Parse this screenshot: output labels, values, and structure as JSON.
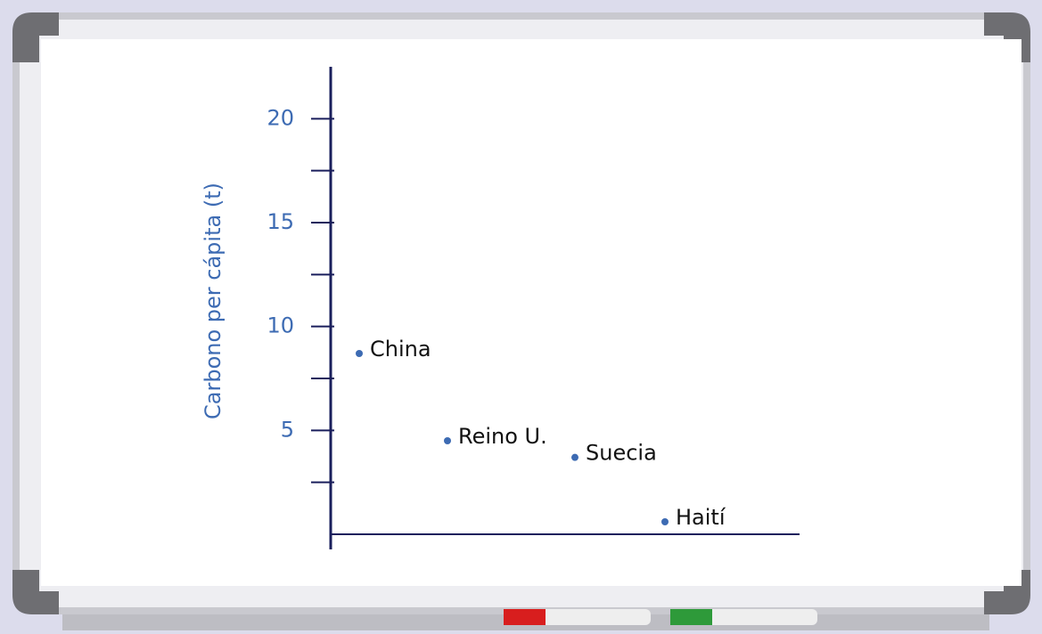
{
  "chart_data": {
    "type": "scatter",
    "y_label": "Carbono per cápita (t)",
    "categories": [
      "China",
      "Reino U.",
      "Suecia",
      "Haití"
    ],
    "values": [
      8.7,
      4.5,
      3.7,
      0.6
    ],
    "color": "#3d6bb3",
    "ylim": [
      0,
      22.5
    ],
    "yticks": [
      5,
      10,
      15,
      20
    ],
    "minor_yticks": [
      2.5,
      7.5,
      12.5,
      17.5
    ]
  }
}
